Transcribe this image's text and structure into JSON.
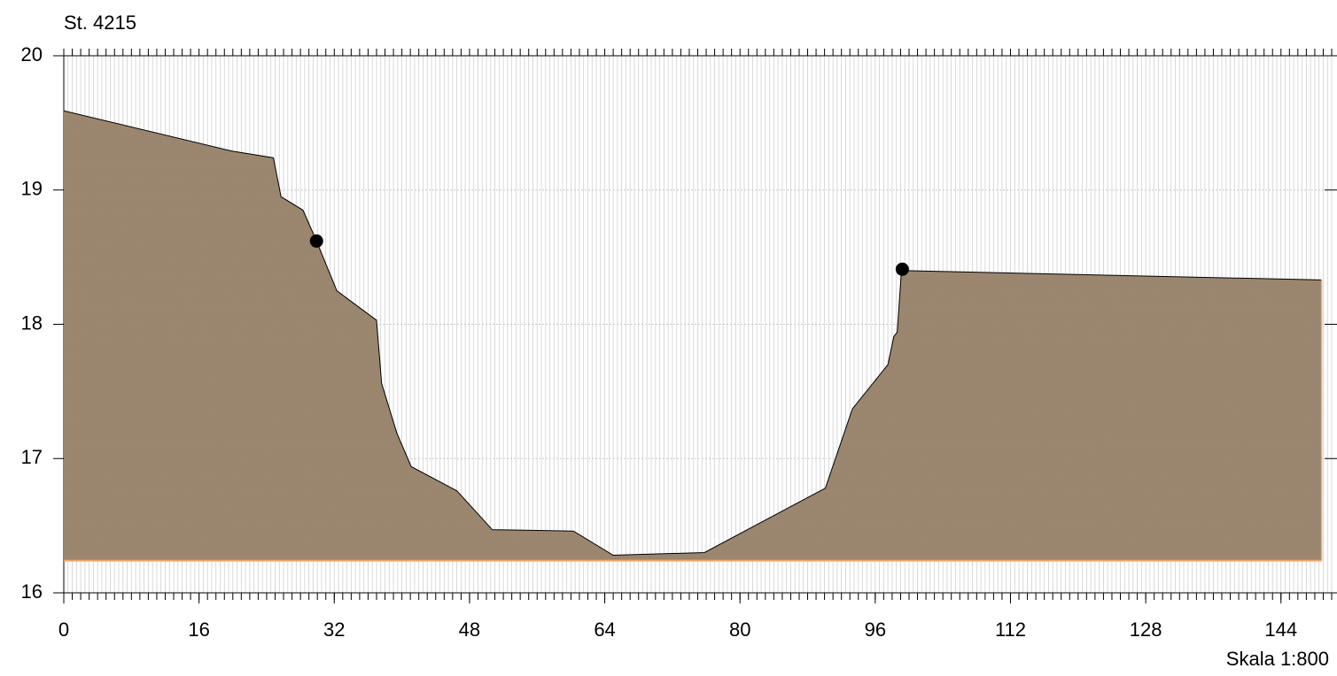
{
  "chart_data": {
    "type": "area",
    "title": "St. 4215",
    "annotation": "Skala 1:800",
    "x": [
      0,
      19.9,
      24.8,
      25.7,
      28.3,
      29.9,
      32.3,
      37.0,
      37.6,
      39.4,
      41.1,
      46.5,
      50.7,
      60.3,
      65.0,
      75.8,
      90.1,
      93.3,
      97.5,
      98.2,
      98.6,
      99.1,
      148.8
    ],
    "series": [
      {
        "color": "#a08b74",
        "values": [
          19.59,
          19.29,
          19.24,
          18.95,
          18.85,
          18.62,
          18.25,
          18.03,
          17.56,
          17.19,
          16.94,
          16.76,
          16.47,
          16.46,
          16.28,
          16.3,
          16.78,
          17.37,
          17.7,
          17.91,
          17.94,
          18.4,
          18.33
        ]
      }
    ],
    "baseline": 16.24,
    "baseline_color": "#f0a868",
    "markers": {
      "x": [
        29.9,
        99.2
      ],
      "y": [
        18.62,
        18.41
      ],
      "color": "#000000"
    },
    "xlim": [
      0,
      150
    ],
    "ylim": [
      16,
      20
    ],
    "xticks": [
      0,
      16,
      32,
      48,
      64,
      80,
      96,
      112,
      128,
      144
    ],
    "yticks": [
      16,
      17,
      18,
      19,
      20
    ],
    "grid": true
  }
}
